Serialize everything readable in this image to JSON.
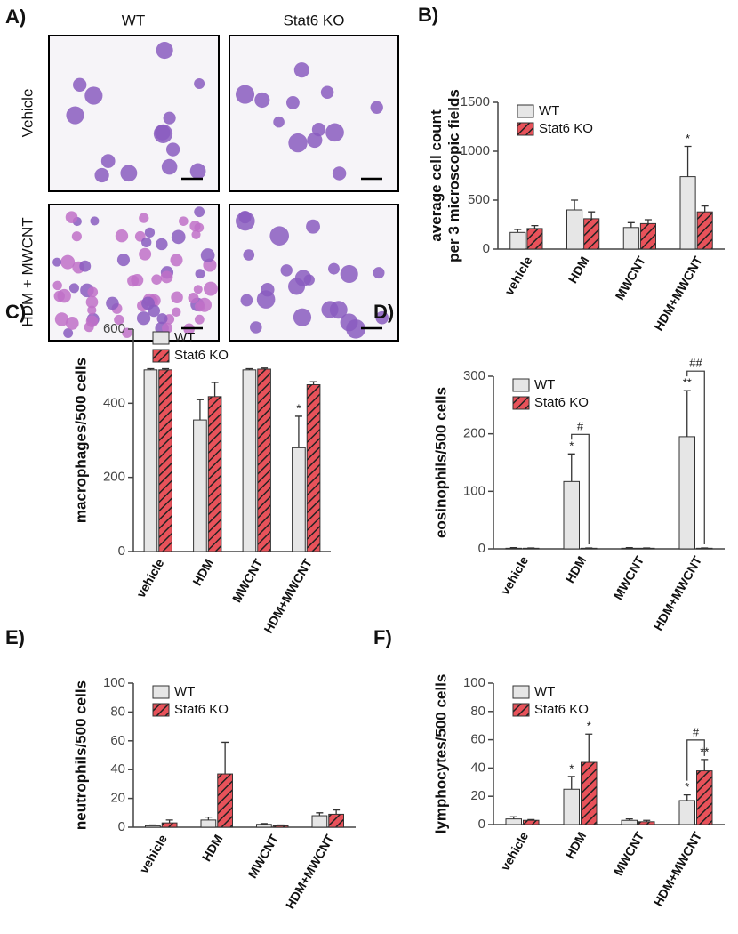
{
  "panel_a": {
    "label": "A)",
    "columns": [
      "WT",
      "Stat6 KO"
    ],
    "rows": [
      "Vehicle",
      "HDM + MWCNT"
    ]
  },
  "chart_data": [
    {
      "type": "bar",
      "label": "B)",
      "ylabel": "average cell count\nper 3 microscopic fields",
      "categories": [
        "vehicle",
        "HDM",
        "MWCNT",
        "HDM+MWCNT"
      ],
      "ylim": [
        0,
        1500
      ],
      "yticks": [
        0,
        500,
        1000,
        1500
      ],
      "series": [
        {
          "name": "WT",
          "color": "#e6e6e6",
          "hatch": false,
          "values": [
            170,
            400,
            220,
            740
          ],
          "errors": [
            30,
            100,
            50,
            310
          ],
          "significance": [
            null,
            null,
            null,
            "*"
          ]
        },
        {
          "name": "Stat6 KO",
          "color": "#e8525a",
          "hatch": true,
          "values": [
            210,
            310,
            260,
            380
          ],
          "errors": [
            30,
            70,
            40,
            60
          ],
          "significance": [
            null,
            null,
            null,
            null
          ]
        }
      ],
      "comparisons": [
        null,
        null,
        null,
        null
      ]
    },
    {
      "type": "bar",
      "label": "C)",
      "ylabel": "macrophages/500 cells",
      "categories": [
        "vehicle",
        "HDM",
        "MWCNT",
        "HDM+MWCNT"
      ],
      "ylim": [
        0,
        600
      ],
      "yticks": [
        0,
        200,
        400,
        600
      ],
      "series": [
        {
          "name": "WT",
          "color": "#e6e6e6",
          "hatch": false,
          "values": [
            490,
            355,
            490,
            280
          ],
          "errors": [
            3,
            55,
            3,
            85
          ],
          "significance": [
            null,
            null,
            null,
            "*"
          ]
        },
        {
          "name": "Stat6 KO",
          "color": "#e8525a",
          "hatch": true,
          "values": [
            490,
            418,
            492,
            450
          ],
          "errors": [
            3,
            38,
            3,
            8
          ],
          "significance": [
            null,
            null,
            null,
            null
          ]
        }
      ],
      "comparisons": [
        null,
        null,
        null,
        null
      ]
    },
    {
      "type": "bar",
      "label": "D)",
      "ylabel": "eosinophils/500 cells",
      "categories": [
        "vehicle",
        "HDM",
        "MWCNT",
        "HDM+MWCNT"
      ],
      "ylim": [
        0,
        300
      ],
      "yticks": [
        0,
        100,
        200,
        300
      ],
      "series": [
        {
          "name": "WT",
          "color": "#e6e6e6",
          "hatch": false,
          "values": [
            1,
            117,
            1,
            195
          ],
          "errors": [
            1,
            48,
            1,
            80
          ],
          "significance": [
            null,
            "*",
            null,
            "**"
          ]
        },
        {
          "name": "Stat6 KO",
          "color": "#e8525a",
          "hatch": true,
          "values": [
            1,
            1,
            1,
            1
          ],
          "errors": [
            0.5,
            0.5,
            0.5,
            0.5
          ],
          "significance": [
            null,
            null,
            null,
            null
          ]
        }
      ],
      "comparisons": [
        null,
        "#",
        null,
        "##"
      ]
    },
    {
      "type": "bar",
      "label": "E)",
      "ylabel": "neutrophils/500 cells",
      "categories": [
        "vehicle",
        "HDM",
        "MWCNT",
        "HDM+MWCNT"
      ],
      "ylim": [
        0,
        100
      ],
      "yticks": [
        0,
        20,
        40,
        60,
        80,
        100
      ],
      "series": [
        {
          "name": "WT",
          "color": "#e6e6e6",
          "hatch": false,
          "values": [
            1,
            5,
            2,
            8
          ],
          "errors": [
            0.5,
            2,
            0.5,
            2
          ],
          "significance": [
            null,
            null,
            null,
            null
          ]
        },
        {
          "name": "Stat6 KO",
          "color": "#e8525a",
          "hatch": true,
          "values": [
            3,
            37,
            1,
            9
          ],
          "errors": [
            2,
            22,
            0.5,
            3
          ],
          "significance": [
            null,
            null,
            null,
            null
          ]
        }
      ],
      "comparisons": [
        null,
        null,
        null,
        null
      ]
    },
    {
      "type": "bar",
      "label": "F)",
      "ylabel": "lymphocytes/500 cells",
      "categories": [
        "vehicle",
        "HDM",
        "MWCNT",
        "HDM+MWCNT"
      ],
      "ylim": [
        0,
        100
      ],
      "yticks": [
        0,
        20,
        40,
        60,
        80,
        100
      ],
      "series": [
        {
          "name": "WT",
          "color": "#e6e6e6",
          "hatch": false,
          "values": [
            4,
            25,
            3,
            17
          ],
          "errors": [
            1.5,
            9,
            1,
            4
          ],
          "significance": [
            null,
            "*",
            null,
            "*"
          ]
        },
        {
          "name": "Stat6 KO",
          "color": "#e8525a",
          "hatch": true,
          "values": [
            3,
            44,
            2,
            38
          ],
          "errors": [
            0.5,
            20,
            1,
            8
          ],
          "significance": [
            null,
            "*",
            null,
            "**"
          ]
        }
      ],
      "comparisons": [
        null,
        null,
        null,
        "#"
      ]
    }
  ]
}
